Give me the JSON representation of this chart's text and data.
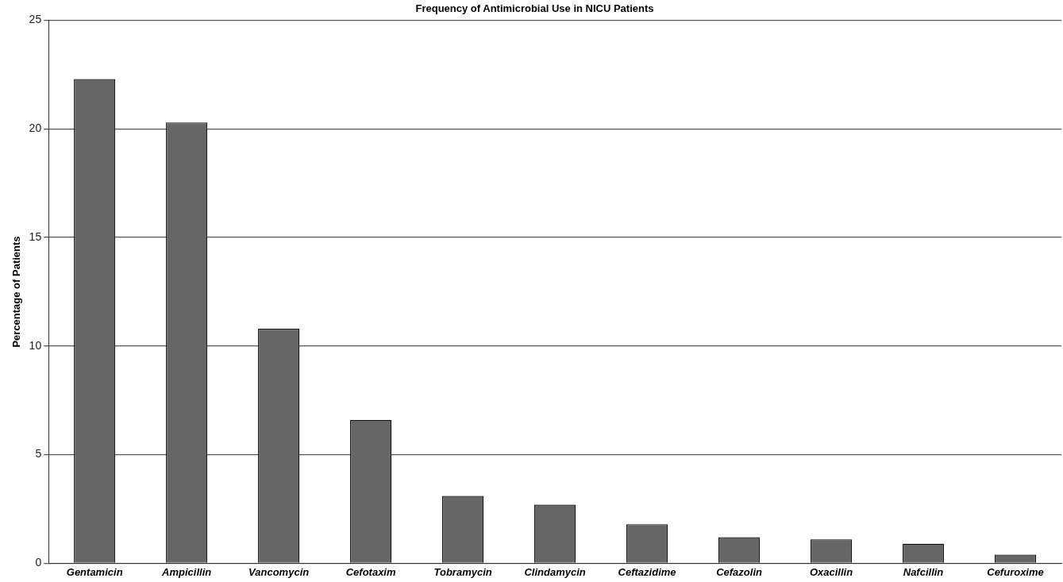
{
  "chart_data": {
    "type": "bar",
    "title": "Frequency of Antimicrobial Use in NICU Patients",
    "ylabel": "Percentage of Patients",
    "categories": [
      "Gentamicin",
      "Ampicillin",
      "Vancomycin",
      "Cefotaxim",
      "Tobramycin",
      "Clindamycin",
      "Ceftazidime",
      "Cefazolin",
      "Oxacillin",
      "Nafcillin",
      "Cefuroxime"
    ],
    "values": [
      22.3,
      20.3,
      10.8,
      6.6,
      3.1,
      2.7,
      1.8,
      1.2,
      1.1,
      0.9,
      0.4
    ],
    "color": "#666666",
    "ylim": [
      0,
      25
    ],
    "yticks": [
      0,
      5,
      10,
      15,
      20,
      25
    ],
    "grid": "y",
    "legend": false
  }
}
